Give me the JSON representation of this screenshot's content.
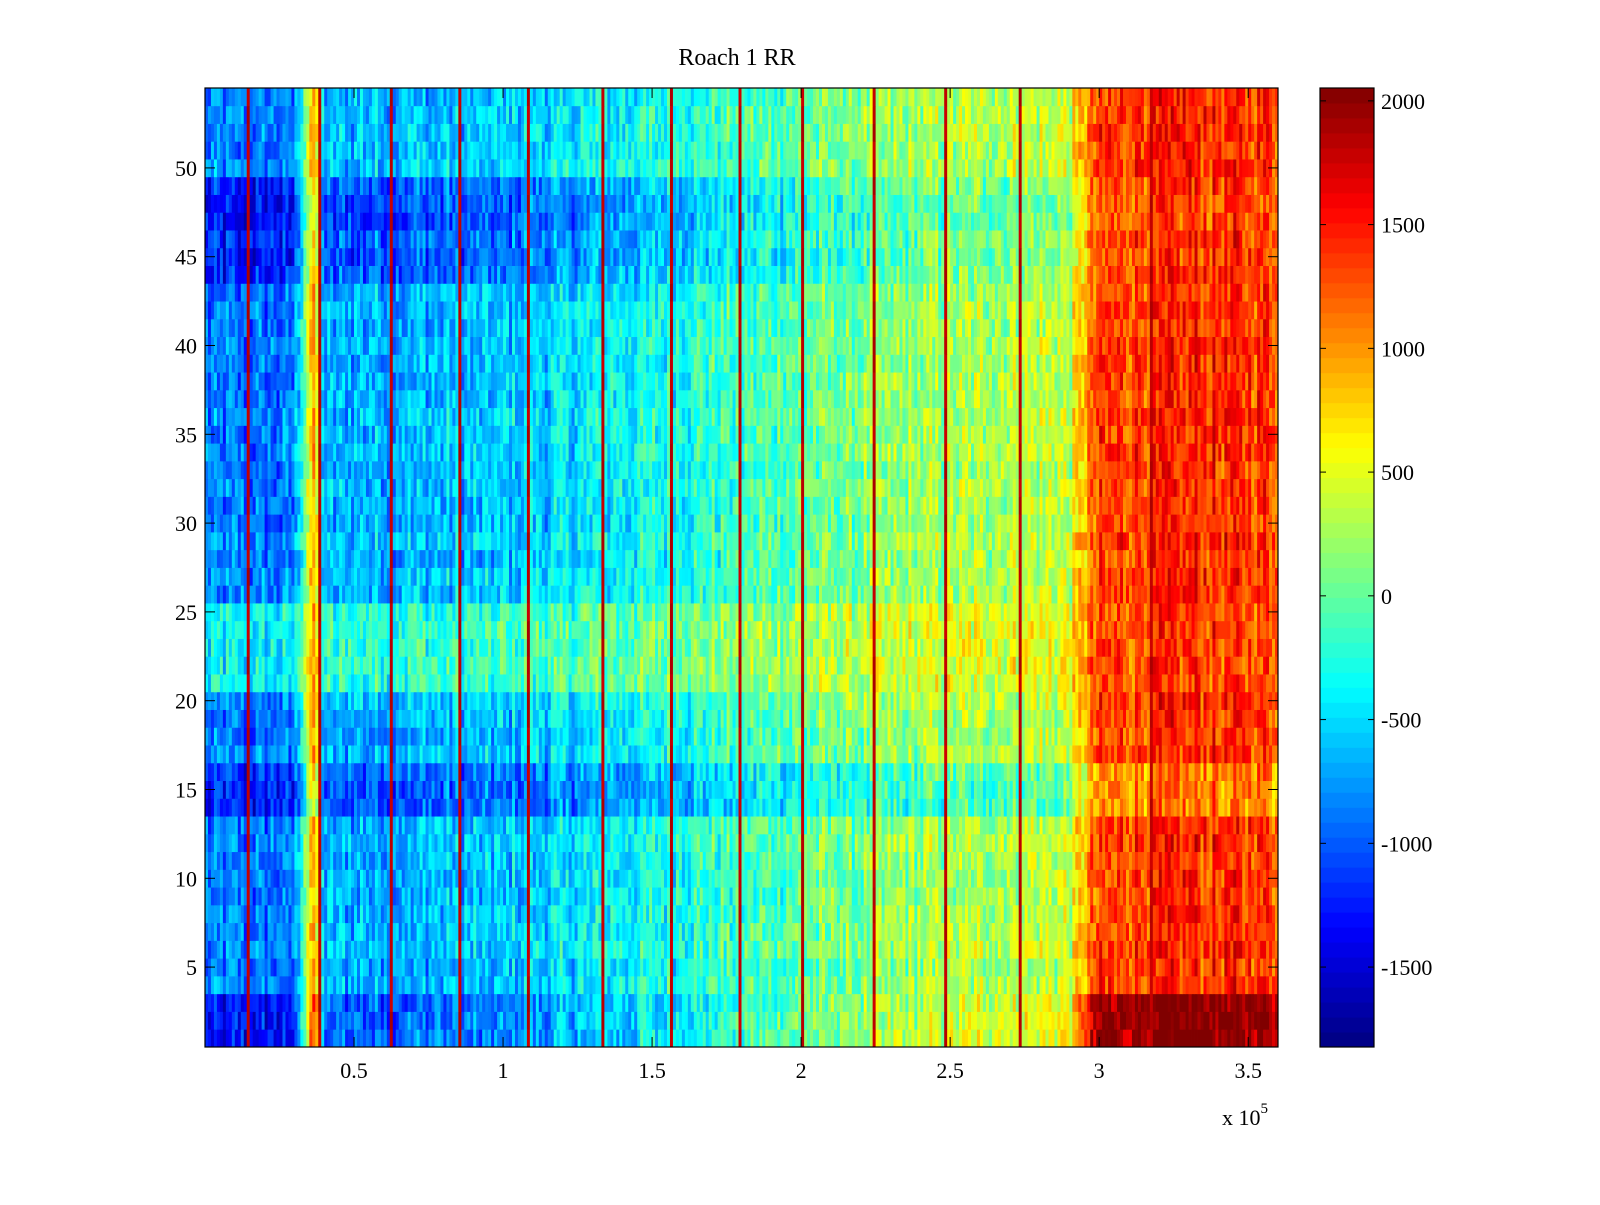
{
  "chart_data": {
    "type": "heatmap",
    "title": "Roach 1 RR",
    "xlabel": "",
    "ylabel": "",
    "x_exponent_label": "x 10",
    "x_exponent_power": "5",
    "xlim": [
      0,
      3.6
    ],
    "ylim": [
      0.5,
      54.5
    ],
    "clim": [
      -1823,
      2052
    ],
    "n_rows": 54,
    "n_cols": 360,
    "x_ticks": [
      0.5,
      1,
      1.5,
      2,
      2.5,
      3,
      3.5
    ],
    "x_tick_labels": [
      "0.5",
      "1",
      "1.5",
      "2",
      "2.5",
      "3",
      "3.5"
    ],
    "y_ticks": [
      5,
      10,
      15,
      20,
      25,
      30,
      35,
      40,
      45,
      50
    ],
    "y_tick_labels": [
      "5",
      "10",
      "15",
      "20",
      "25",
      "30",
      "35",
      "40",
      "45",
      "50"
    ],
    "colorbar_ticks": [
      -1500,
      -1000,
      -500,
      0,
      500,
      1000,
      1500,
      2000
    ],
    "colorbar_tick_labels": [
      "-1500",
      "-1000",
      "-500",
      "0",
      "500",
      "1000",
      "1500",
      "2000"
    ],
    "colormap": "jet",
    "column_mean_profile": {
      "x": [
        0,
        0.3,
        0.34,
        0.36,
        0.38,
        0.4,
        0.5,
        1.0,
        1.5,
        2.0,
        2.5,
        2.9,
        2.95,
        3.0,
        3.3,
        3.6
      ],
      "value": [
        -900,
        -900,
        300,
        900,
        500,
        -700,
        -650,
        -600,
        -300,
        0,
        250,
        380,
        900,
        1300,
        1450,
        1350
      ]
    },
    "spike_columns_x": [
      0.14,
      0.38,
      0.62,
      0.85,
      1.08,
      1.33,
      1.56,
      1.79,
      2.01,
      2.24,
      2.48,
      2.73,
      3.17
    ],
    "spike_value": 1900,
    "row_offsets": [
      {
        "rows": [
          1,
          3
        ],
        "scale": 1.45,
        "offset": 0
      },
      {
        "rows": [
          14,
          16
        ],
        "scale": 1.0,
        "offset": -320
      },
      {
        "rows": [
          21,
          25
        ],
        "scale": 0.75,
        "offset": 250
      },
      {
        "rows": [
          44,
          49
        ],
        "scale": 1.15,
        "offset": -250
      }
    ],
    "noise_amplitude": 380
  }
}
